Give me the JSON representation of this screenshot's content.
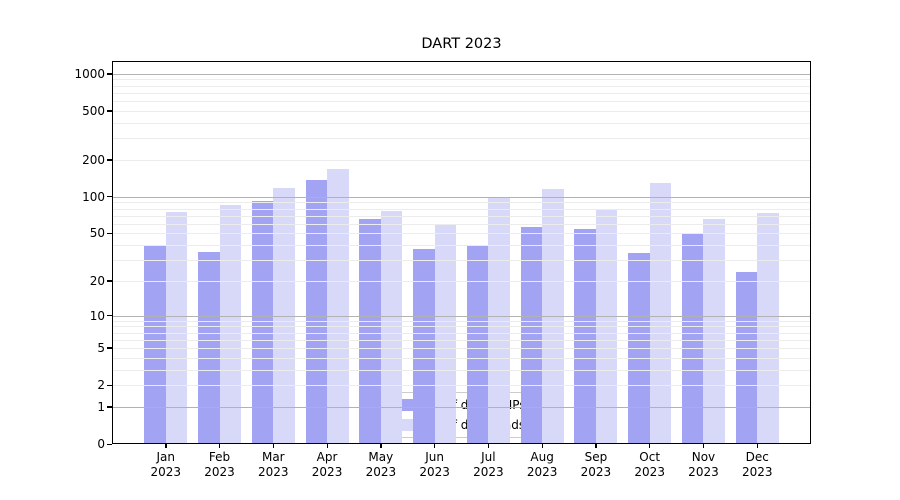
{
  "chart_data": {
    "type": "bar",
    "title": "DART 2023",
    "categories": [
      "Jan 2023",
      "Feb 2023",
      "Mar 2023",
      "Apr 2023",
      "May 2023",
      "Jun 2023",
      "Jul 2023",
      "Aug 2023",
      "Sep 2023",
      "Oct 2023",
      "Nov 2023",
      "Dec 2023"
    ],
    "series": [
      {
        "name": "Nb of distinct IPs",
        "color": "#a3a3f3",
        "values": [
          40,
          35,
          92,
          136,
          66,
          37,
          40,
          56,
          54,
          34,
          49,
          24
        ]
      },
      {
        "name": "Nb of downloads",
        "color": "#d8d8f8",
        "values": [
          75,
          85,
          117,
          168,
          76,
          60,
          97,
          115,
          80,
          130,
          66,
          74
        ]
      }
    ],
    "yscale": "log1p",
    "ylim": [
      0,
      1270
    ],
    "yticks": [
      0,
      1,
      2,
      5,
      10,
      20,
      50,
      100,
      200,
      500,
      1000
    ],
    "grid": {
      "major_lines": [
        1,
        10,
        100,
        1000
      ],
      "minor_decades": [
        1,
        10,
        100
      ],
      "on": true
    },
    "legend_position": "lower-center",
    "colors": {
      "major_grid": "#b2b2b2",
      "minor_grid": "#ececec",
      "spine": "#000000"
    }
  }
}
